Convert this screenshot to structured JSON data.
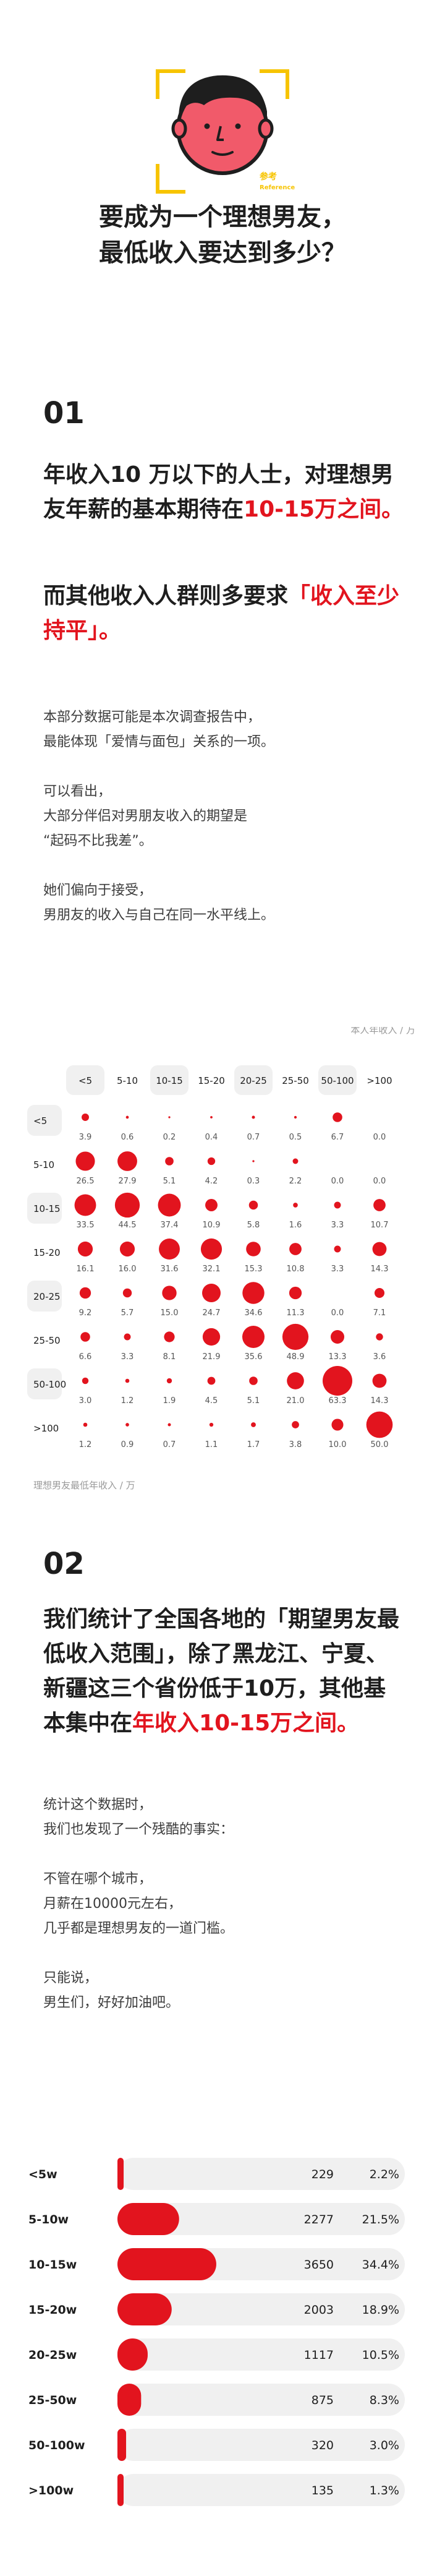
{
  "logo": {
    "line1": "参考",
    "line2": "Reference"
  },
  "title_lines": [
    "要成为一个理想男友，",
    "最低收入要达到多少？"
  ],
  "section1": {
    "number": "01",
    "lead1": {
      "text": "年收入10 万以下的人士，对理想男友年薪的基本期待在",
      "highlight": "10-15万之间。"
    },
    "lead2": {
      "text": "而其他收入人群则多要求",
      "highlight": "「收入至少持平」。"
    },
    "paragraphs": [
      "本部分数据可能是本次调查报告中，\n最能体现「爱情与面包」关系的一项。",
      "可以看出，\n大部分伴侣对男朋友收入的期望是\n“起码不比我差”。",
      "她们偏向于接受，\n男朋友的收入与自己在同一水平线上。"
    ]
  },
  "section2": {
    "number": "02",
    "lead": {
      "text": "我们统计了全国各地的「期望男友最低收入范围」，除了黑龙江、宁夏、新疆这三个省份低于10万，其他基本集中在",
      "highlight": "年收入10-15万之间。"
    },
    "paragraphs": [
      "统计这个数据时，\n我们也发现了一个残酷的事实：",
      "不管在哪个城市，\n月薪在10000元左右，\n几乎都是理想男友的一道门槛。",
      "只能说，\n男生们，好好加油吧。"
    ]
  },
  "chart_data": [
    {
      "type": "heatmap",
      "xlabel": "本人年收入 / 万",
      "ylabel": "理想男友最低年收入 / 万",
      "x": [
        "<5",
        "5-10",
        "10-15",
        "15-20",
        "20-25",
        "25-50",
        "50-100",
        ">100"
      ],
      "y": [
        "<5",
        "5-10",
        "10-15",
        "15-20",
        "20-25",
        "25-50",
        "50-100",
        ">100"
      ],
      "values": [
        [
          3.9,
          0.6,
          0.2,
          0.4,
          0.7,
          0.5,
          6.7,
          0.0
        ],
        [
          26.5,
          27.9,
          5.1,
          4.2,
          0.3,
          2.2,
          0.0,
          0.0
        ],
        [
          33.5,
          44.5,
          37.4,
          10.9,
          5.8,
          1.6,
          3.3,
          10.7
        ],
        [
          16.1,
          16.0,
          31.6,
          32.1,
          15.3,
          10.8,
          3.3,
          14.3
        ],
        [
          9.2,
          5.7,
          15.0,
          24.7,
          34.6,
          11.3,
          0.0,
          7.1
        ],
        [
          6.6,
          3.3,
          8.1,
          21.9,
          35.6,
          48.9,
          13.3,
          3.6
        ],
        [
          3.0,
          1.2,
          1.9,
          4.5,
          5.1,
          21.0,
          63.3,
          14.3
        ],
        [
          1.2,
          0.9,
          0.7,
          1.1,
          1.7,
          3.8,
          10.0,
          50.0
        ]
      ],
      "color": "#e2141e"
    },
    {
      "type": "bar",
      "orientation": "horizontal",
      "categories": [
        "<5w",
        "5-10w",
        "10-15w",
        "15-20w",
        "20-25w",
        "25-50w",
        "50-100w",
        ">100w"
      ],
      "values": [
        229,
        2277,
        3650,
        2003,
        1117,
        875,
        320,
        135
      ],
      "percents": [
        "2.2%",
        "21.5%",
        "34.4%",
        "18.9%",
        "10.5%",
        "8.3%",
        "3.0%",
        "1.3%"
      ],
      "xlim": [
        0,
        10612
      ],
      "color": "#e2141e"
    }
  ]
}
